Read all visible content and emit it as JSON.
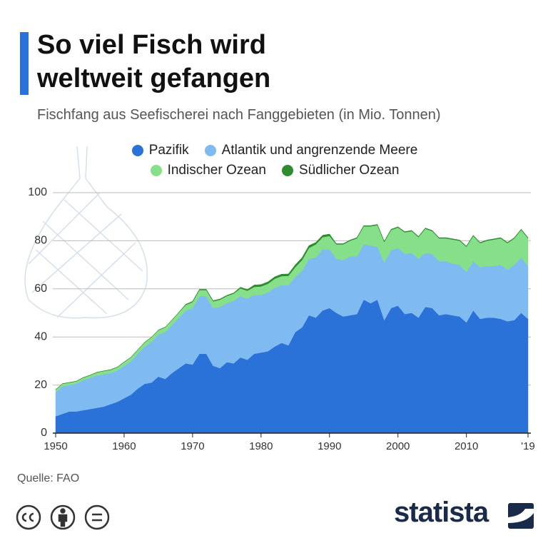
{
  "chart_data": {
    "type": "stacked_area",
    "title": [
      "So viel Fisch wird",
      "weltweit gefangen"
    ],
    "subtitle": "Fischfang aus Seefischerei nach Fanggebieten (in Mio. Tonnen)",
    "source": "Quelle: FAO",
    "brand": "statista",
    "x": [
      1950,
      1951,
      1952,
      1953,
      1954,
      1955,
      1956,
      1957,
      1958,
      1959,
      1960,
      1961,
      1962,
      1963,
      1964,
      1965,
      1966,
      1967,
      1968,
      1969,
      1970,
      1971,
      1972,
      1973,
      1974,
      1975,
      1976,
      1977,
      1978,
      1979,
      1980,
      1981,
      1982,
      1983,
      1984,
      1985,
      1986,
      1987,
      1988,
      1989,
      1990,
      1991,
      1992,
      1993,
      1994,
      1995,
      1996,
      1997,
      1998,
      1999,
      2000,
      2001,
      2002,
      2003,
      2004,
      2005,
      2006,
      2007,
      2008,
      2009,
      2010,
      2011,
      2012,
      2013,
      2014,
      2015,
      2016,
      2017,
      2018,
      2019
    ],
    "xlim": [
      1950,
      2019
    ],
    "xticks": [
      1950,
      1960,
      1970,
      1980,
      1990,
      2000,
      2010,
      {
        "value": 2019,
        "label": "'19"
      }
    ],
    "ylim": [
      0,
      100
    ],
    "yticks": [
      0,
      20,
      40,
      60,
      80,
      100
    ],
    "grid": true,
    "series": [
      {
        "name": "Pazifik",
        "color": "#2a72d8",
        "values": [
          7,
          8,
          9,
          9,
          9.5,
          10,
          10.5,
          11,
          12,
          13,
          14.5,
          16,
          18.5,
          20.5,
          21,
          23.5,
          22.5,
          25,
          27,
          29,
          28.5,
          33,
          33,
          28,
          27,
          29.5,
          29,
          31.5,
          30.5,
          33,
          33.5,
          34,
          36,
          37.5,
          36.5,
          42,
          44,
          49,
          48,
          51,
          52,
          50,
          48.5,
          49,
          49.5,
          55.5,
          54,
          55.5,
          47,
          52,
          53,
          49.5,
          50,
          48,
          52.5,
          52,
          49,
          49.5,
          49,
          48.5,
          46,
          51,
          47.5,
          48,
          48,
          47.5,
          46.5,
          47,
          50,
          47.5
        ]
      },
      {
        "name": "Atlantik und angrenzende Meere",
        "color": "#7fbaf0",
        "values": [
          10,
          11.5,
          11,
          11.5,
          12.5,
          13,
          13.5,
          13.5,
          13,
          13,
          13.5,
          14,
          14.5,
          15.5,
          17,
          17.5,
          19.5,
          20,
          21,
          22,
          23.5,
          24,
          24,
          24,
          25.5,
          24.5,
          26,
          25.5,
          25.5,
          24.5,
          24,
          24.5,
          24.5,
          24,
          25,
          23,
          23.5,
          23.5,
          25,
          25.5,
          24.5,
          22.5,
          23.5,
          24.5,
          24,
          23,
          24,
          22,
          24,
          24,
          24,
          25,
          25,
          24.5,
          22.5,
          22.5,
          22.5,
          22,
          21.5,
          21.5,
          21,
          20.5,
          21.5,
          21.5,
          21.5,
          22.5,
          21.5,
          23,
          23,
          22
        ]
      },
      {
        "name": "Indischer Ozean",
        "color": "#86e08a",
        "values": [
          1,
          1,
          1,
          1,
          1,
          1,
          1.2,
          1.3,
          1.3,
          1.4,
          1.5,
          1.5,
          1.6,
          1.7,
          1.8,
          1.8,
          2,
          2,
          2.2,
          2.3,
          2.5,
          2.5,
          2.5,
          2.8,
          3,
          3,
          3,
          3.2,
          3.2,
          3.3,
          3.5,
          3.6,
          3.7,
          3.8,
          3.9,
          4,
          4.5,
          4.5,
          5.5,
          5,
          5.5,
          6,
          6.5,
          6.5,
          7.5,
          7.5,
          8,
          9,
          8.5,
          8.5,
          8.5,
          9,
          9,
          9,
          10,
          9.5,
          9.5,
          9.5,
          10,
          10,
          10.5,
          10.5,
          10,
          10.5,
          11,
          11,
          11,
          11,
          11.5,
          11.5
        ]
      },
      {
        "name": "Südlicher Ozean",
        "color": "#2e8b2e",
        "values": [
          0.1,
          0.1,
          0.1,
          0.1,
          0.1,
          0.1,
          0.1,
          0.1,
          0.1,
          0.1,
          0.1,
          0.1,
          0.1,
          0.1,
          0.1,
          0.1,
          0.1,
          0.1,
          0.1,
          0.3,
          0.3,
          0.3,
          0.3,
          0.3,
          0.3,
          0.3,
          0.3,
          0.5,
          0.5,
          0.8,
          0.8,
          0.8,
          0.8,
          0.8,
          0.8,
          1,
          1,
          1,
          0.8,
          0.8,
          0.8,
          0.3,
          0.3,
          0.3,
          0.3,
          0.3,
          0.3,
          0.3,
          0.3,
          0.3,
          0.3,
          0.3,
          0.3,
          0.3,
          0.3,
          0.3,
          0.3,
          0.3,
          0.3,
          0.3,
          0.3,
          0.3,
          0.3,
          0.3,
          0.3,
          0.3,
          0.3,
          0.3,
          0.3,
          0.3
        ]
      }
    ]
  }
}
